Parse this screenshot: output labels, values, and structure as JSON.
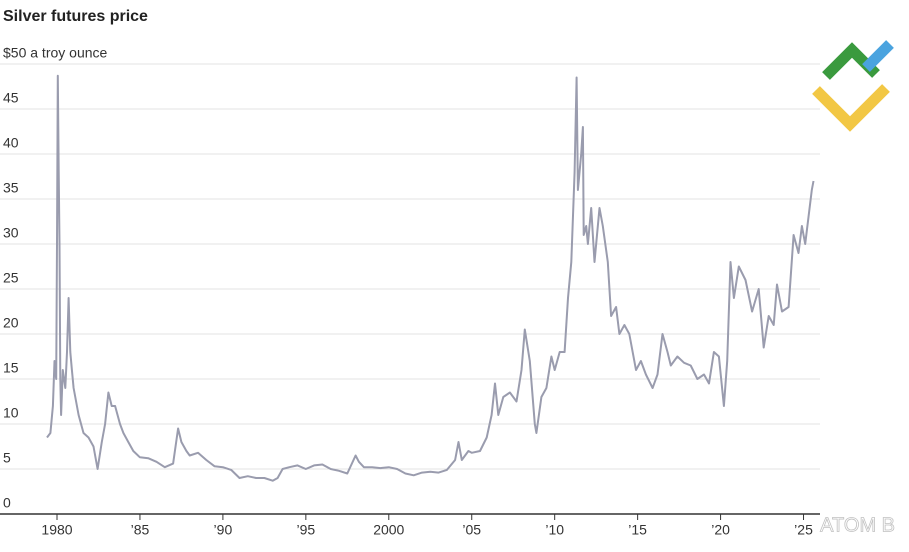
{
  "chart_data": {
    "type": "line",
    "title": "Silver futures price",
    "x": [
      1979.4,
      1979.6,
      1979.75,
      1979.85,
      1979.95,
      1980.0,
      1980.05,
      1980.1,
      1980.15,
      1980.2,
      1980.25,
      1980.35,
      1980.5,
      1980.6,
      1980.7,
      1980.8,
      1980.9,
      1981.0,
      1981.3,
      1981.6,
      1981.9,
      1982.2,
      1982.45,
      1982.7,
      1982.9,
      1983.1,
      1983.3,
      1983.5,
      1983.8,
      1984.0,
      1984.3,
      1984.6,
      1985.0,
      1985.5,
      1986.0,
      1986.5,
      1987.0,
      1987.3,
      1987.5,
      1987.8,
      1988.0,
      1988.5,
      1989.0,
      1989.5,
      1990.0,
      1990.5,
      1991.0,
      1991.5,
      1992.0,
      1992.5,
      1993.0,
      1993.3,
      1993.6,
      1994.0,
      1994.5,
      1995.0,
      1995.5,
      1996.0,
      1996.5,
      1997.0,
      1997.5,
      1998.0,
      1998.2,
      1998.5,
      1999.0,
      1999.5,
      2000.0,
      2000.5,
      2001.0,
      2001.5,
      2002.0,
      2002.5,
      2003.0,
      2003.5,
      2004.0,
      2004.2,
      2004.4,
      2004.8,
      2005.0,
      2005.5,
      2005.9,
      2006.2,
      2006.4,
      2006.6,
      2006.9,
      2007.3,
      2007.7,
      2008.0,
      2008.2,
      2008.5,
      2008.8,
      2008.9,
      2009.2,
      2009.5,
      2009.8,
      2010.0,
      2010.3,
      2010.6,
      2010.8,
      2011.0,
      2011.2,
      2011.32,
      2011.4,
      2011.6,
      2011.7,
      2011.75,
      2011.9,
      2012.0,
      2012.2,
      2012.4,
      2012.7,
      2012.9,
      2013.2,
      2013.4,
      2013.7,
      2013.9,
      2014.2,
      2014.5,
      2014.9,
      2015.2,
      2015.5,
      2015.9,
      2016.2,
      2016.5,
      2016.8,
      2017.0,
      2017.4,
      2017.8,
      2018.2,
      2018.6,
      2019.0,
      2019.3,
      2019.6,
      2019.9,
      2020.2,
      2020.4,
      2020.6,
      2020.8,
      2021.1,
      2021.5,
      2021.9,
      2022.3,
      2022.6,
      2022.9,
      2023.2,
      2023.4,
      2023.7,
      2024.1,
      2024.4,
      2024.7,
      2024.9,
      2025.1,
      2025.3,
      2025.5,
      2025.6
    ],
    "series": [
      {
        "name": "Silver",
        "color": "#9a9cae",
        "values": [
          8.5,
          9,
          12,
          17,
          15,
          30,
          48.7,
          38,
          30,
          15,
          11,
          16,
          14,
          18,
          24,
          18,
          16,
          14,
          11,
          9,
          8.5,
          7.5,
          5,
          8,
          10,
          13.5,
          12,
          12,
          10,
          9,
          8,
          7,
          6.3,
          6.2,
          5.8,
          5.2,
          5.6,
          9.5,
          8,
          7,
          6.5,
          6.8,
          6,
          5.3,
          5.2,
          4.9,
          4,
          4.2,
          4,
          4,
          3.7,
          4,
          5,
          5.2,
          5.4,
          5,
          5.4,
          5.5,
          5,
          4.8,
          4.5,
          6.5,
          5.8,
          5.2,
          5.2,
          5.1,
          5.2,
          5,
          4.5,
          4.3,
          4.6,
          4.7,
          4.6,
          4.9,
          6,
          8,
          6,
          7,
          6.8,
          7,
          8.5,
          11,
          14.5,
          11,
          13,
          13.5,
          12.5,
          16,
          20.5,
          17,
          10,
          9,
          13,
          14,
          17.5,
          16,
          18,
          18,
          24,
          28,
          38,
          48.5,
          36,
          40,
          43,
          31,
          32,
          30,
          34,
          28,
          34,
          32,
          28,
          22,
          23,
          20,
          21,
          20,
          16,
          17,
          15.5,
          14,
          15.5,
          20,
          18,
          16.5,
          17.5,
          16.8,
          16.5,
          15,
          15.5,
          14.5,
          18,
          17.5,
          12,
          17,
          28,
          24,
          27.5,
          26,
          22.5,
          25,
          18.5,
          22,
          21,
          25.5,
          22.5,
          23,
          31,
          29,
          32,
          30,
          33,
          36,
          37
        ]
      }
    ],
    "xlim": [
      1979,
      2026.5
    ],
    "xticks": [
      1980,
      {
        "value": 1985,
        "label": "’85"
      },
      {
        "value": 1990,
        "label": "’90"
      },
      {
        "value": 1995,
        "label": "’95"
      },
      2000,
      {
        "value": 2005,
        "label": "’05"
      },
      {
        "value": 2010,
        "label": "’10"
      },
      {
        "value": 2015,
        "label": "’15"
      },
      {
        "value": 2020,
        "label": "’20"
      },
      {
        "value": 2025,
        "label": "’25"
      }
    ],
    "ylim": [
      0,
      50
    ],
    "yticks": [
      0,
      5,
      10,
      15,
      20,
      25,
      30,
      35,
      40,
      45,
      {
        "value": 50,
        "label": "$50 a troy ounce"
      }
    ],
    "grid": true,
    "watermark": "ATOM B"
  }
}
